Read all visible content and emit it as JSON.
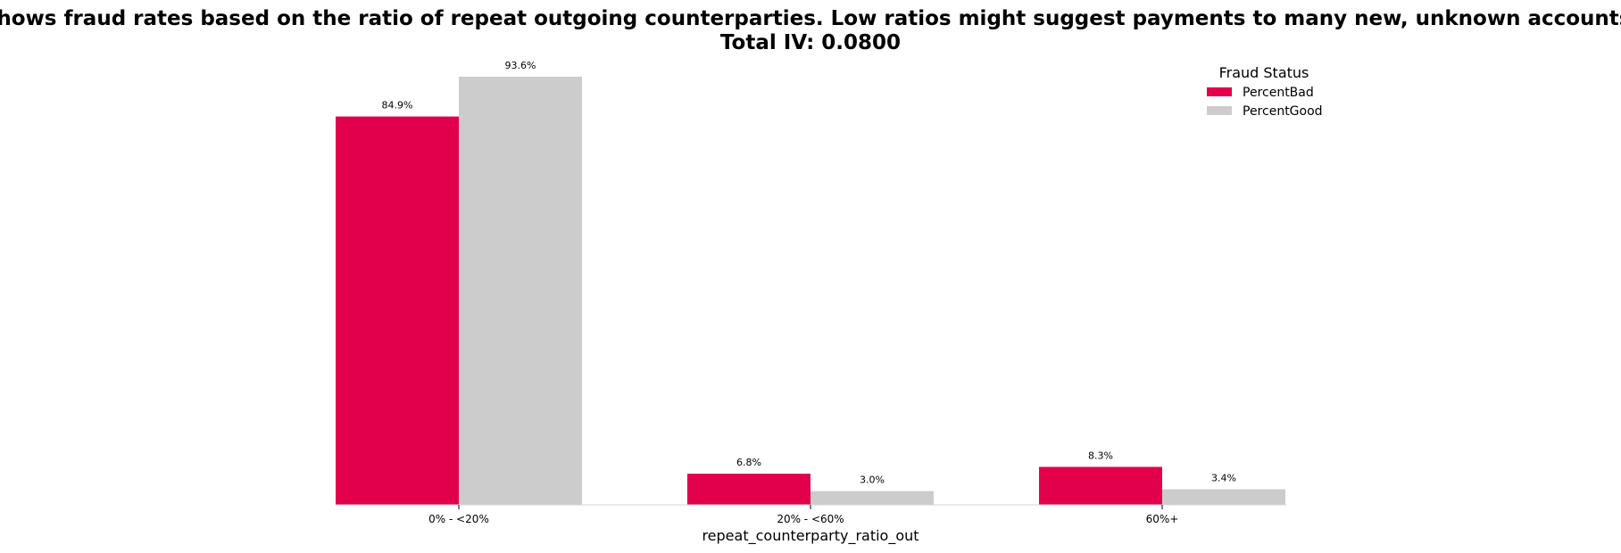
{
  "chart_data": {
    "type": "bar",
    "title": "Shows fraud rates based on the ratio of repeat outgoing counterparties. Low ratios might suggest payments to many new, unknown accounts.",
    "subtitle": "Total IV: 0.0800",
    "xlabel": "repeat_counterparty_ratio_out",
    "ylabel": "",
    "categories": [
      "0% - <20%",
      "20% - <60%",
      "60%+"
    ],
    "series": [
      {
        "name": "PercentBad",
        "values": [
          84.9,
          6.8,
          8.3
        ],
        "labels": [
          "84.9%",
          "6.8%",
          "8.3%"
        ],
        "color": "#e2004d"
      },
      {
        "name": "PercentGood",
        "values": [
          93.6,
          3.0,
          3.4
        ],
        "labels": [
          "93.6%",
          "3.0%",
          "3.4%"
        ],
        "color": "#cccccc"
      }
    ],
    "ylim": [
      0,
      93.6
    ],
    "grid": false,
    "legend": {
      "title": "Fraud Status",
      "position": "top-right"
    }
  }
}
